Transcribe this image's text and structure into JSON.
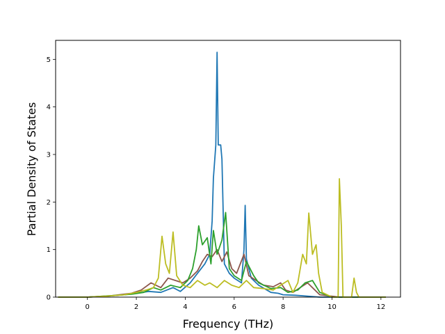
{
  "chart_data": {
    "type": "line",
    "xlabel": "Frequency (THz)",
    "ylabel": "Partial Density of States",
    "xlim": [
      -1.3,
      12.8
    ],
    "ylim": [
      0,
      5.4
    ],
    "x_ticks": [
      0,
      2,
      4,
      6,
      8,
      10,
      12
    ],
    "y_ticks": [
      0,
      1,
      2,
      3,
      4,
      5
    ],
    "grid": false,
    "series": [
      {
        "color": "#1f77b4",
        "points": [
          [
            -1.2,
            0
          ],
          [
            0,
            0
          ],
          [
            0.8,
            0.02
          ],
          [
            1.5,
            0.05
          ],
          [
            2.0,
            0.08
          ],
          [
            2.5,
            0.12
          ],
          [
            3.0,
            0.1
          ],
          [
            3.5,
            0.2
          ],
          [
            3.8,
            0.12
          ],
          [
            4.2,
            0.3
          ],
          [
            4.5,
            0.5
          ],
          [
            4.8,
            0.7
          ],
          [
            5.0,
            0.9
          ],
          [
            5.1,
            1.6
          ],
          [
            5.15,
            2.5
          ],
          [
            5.25,
            3.2
          ],
          [
            5.3,
            5.15
          ],
          [
            5.35,
            3.2
          ],
          [
            5.45,
            3.2
          ],
          [
            5.5,
            2.9
          ],
          [
            5.6,
            0.7
          ],
          [
            5.8,
            0.5
          ],
          [
            6.0,
            0.4
          ],
          [
            6.3,
            0.3
          ],
          [
            6.4,
            1.0
          ],
          [
            6.45,
            1.93
          ],
          [
            6.5,
            0.8
          ],
          [
            6.7,
            0.4
          ],
          [
            7.0,
            0.25
          ],
          [
            7.5,
            0.1
          ],
          [
            7.8,
            0.08
          ],
          [
            8.0,
            0.05
          ],
          [
            8.5,
            0.04
          ],
          [
            9.0,
            0.02
          ],
          [
            9.5,
            0
          ],
          [
            12.2,
            0
          ]
        ]
      },
      {
        "color": "#8c564b",
        "points": [
          [
            -1.2,
            0
          ],
          [
            0,
            0
          ],
          [
            1.0,
            0.03
          ],
          [
            1.8,
            0.08
          ],
          [
            2.2,
            0.15
          ],
          [
            2.6,
            0.3
          ],
          [
            3.0,
            0.2
          ],
          [
            3.3,
            0.4
          ],
          [
            3.6,
            0.35
          ],
          [
            3.9,
            0.3
          ],
          [
            4.2,
            0.4
          ],
          [
            4.5,
            0.55
          ],
          [
            4.7,
            0.75
          ],
          [
            4.9,
            0.9
          ],
          [
            5.1,
            0.85
          ],
          [
            5.3,
            1.0
          ],
          [
            5.5,
            0.75
          ],
          [
            5.7,
            0.95
          ],
          [
            5.9,
            0.6
          ],
          [
            6.1,
            0.5
          ],
          [
            6.4,
            0.9
          ],
          [
            6.6,
            0.45
          ],
          [
            6.9,
            0.35
          ],
          [
            7.2,
            0.25
          ],
          [
            7.6,
            0.22
          ],
          [
            7.9,
            0.3
          ],
          [
            8.1,
            0.15
          ],
          [
            8.4,
            0.1
          ],
          [
            8.7,
            0.2
          ],
          [
            9.0,
            0.3
          ],
          [
            9.3,
            0.15
          ],
          [
            9.5,
            0.05
          ],
          [
            10.3,
            0
          ],
          [
            12.2,
            0
          ]
        ]
      },
      {
        "color": "#2ca02c",
        "points": [
          [
            -1.2,
            0
          ],
          [
            0,
            0
          ],
          [
            1.0,
            0.03
          ],
          [
            1.8,
            0.06
          ],
          [
            2.3,
            0.1
          ],
          [
            2.7,
            0.2
          ],
          [
            3.0,
            0.15
          ],
          [
            3.4,
            0.25
          ],
          [
            3.8,
            0.2
          ],
          [
            4.1,
            0.35
          ],
          [
            4.3,
            0.6
          ],
          [
            4.45,
            1.0
          ],
          [
            4.55,
            1.5
          ],
          [
            4.7,
            1.1
          ],
          [
            4.9,
            1.25
          ],
          [
            5.05,
            0.7
          ],
          [
            5.15,
            1.4
          ],
          [
            5.3,
            0.9
          ],
          [
            5.5,
            1.2
          ],
          [
            5.65,
            1.78
          ],
          [
            5.8,
            0.6
          ],
          [
            6.0,
            0.45
          ],
          [
            6.3,
            0.35
          ],
          [
            6.5,
            0.75
          ],
          [
            6.8,
            0.45
          ],
          [
            7.0,
            0.3
          ],
          [
            7.5,
            0.18
          ],
          [
            7.9,
            0.2
          ],
          [
            8.2,
            0.1
          ],
          [
            8.6,
            0.15
          ],
          [
            8.9,
            0.3
          ],
          [
            9.2,
            0.35
          ],
          [
            9.5,
            0.1
          ],
          [
            10.0,
            0
          ],
          [
            12.2,
            0
          ]
        ]
      },
      {
        "color": "#bcbd22",
        "points": [
          [
            -1.2,
            0
          ],
          [
            0,
            0
          ],
          [
            0.8,
            0.02
          ],
          [
            1.5,
            0.05
          ],
          [
            2.0,
            0.1
          ],
          [
            2.4,
            0.15
          ],
          [
            2.7,
            0.2
          ],
          [
            2.9,
            0.4
          ],
          [
            3.05,
            1.28
          ],
          [
            3.2,
            0.7
          ],
          [
            3.35,
            0.5
          ],
          [
            3.5,
            1.37
          ],
          [
            3.65,
            0.45
          ],
          [
            3.9,
            0.25
          ],
          [
            4.2,
            0.2
          ],
          [
            4.5,
            0.35
          ],
          [
            4.8,
            0.25
          ],
          [
            5.0,
            0.3
          ],
          [
            5.3,
            0.2
          ],
          [
            5.6,
            0.35
          ],
          [
            5.9,
            0.25
          ],
          [
            6.2,
            0.2
          ],
          [
            6.5,
            0.35
          ],
          [
            6.8,
            0.2
          ],
          [
            7.2,
            0.18
          ],
          [
            7.6,
            0.15
          ],
          [
            7.9,
            0.25
          ],
          [
            8.2,
            0.35
          ],
          [
            8.4,
            0.1
          ],
          [
            8.6,
            0.3
          ],
          [
            8.8,
            0.9
          ],
          [
            8.95,
            0.7
          ],
          [
            9.05,
            1.77
          ],
          [
            9.2,
            0.9
          ],
          [
            9.35,
            1.1
          ],
          [
            9.45,
            0.5
          ],
          [
            9.6,
            0.1
          ],
          [
            10.0,
            0
          ],
          [
            10.25,
            0
          ],
          [
            10.3,
            2.49
          ],
          [
            10.38,
            1.5
          ],
          [
            10.45,
            0
          ],
          [
            10.8,
            0
          ],
          [
            10.9,
            0.4
          ],
          [
            11.0,
            0.1
          ],
          [
            11.1,
            0
          ],
          [
            12.2,
            0
          ]
        ]
      }
    ]
  }
}
